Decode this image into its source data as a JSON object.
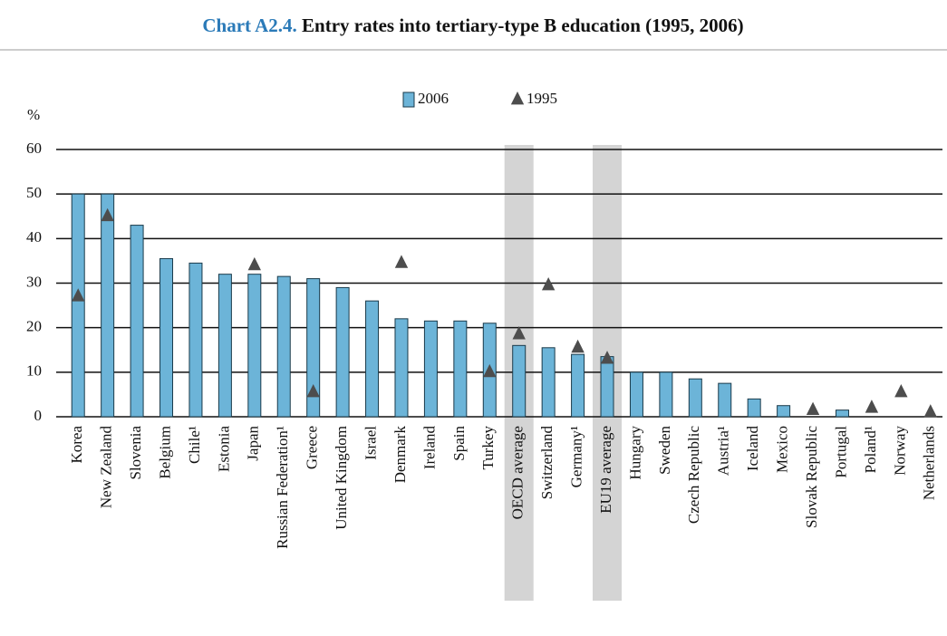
{
  "chart_data": {
    "type": "bar",
    "title": {
      "label": "Chart A2.4.",
      "text": "Entry rates into tertiary-type B education (1995, 2006)"
    },
    "y_unit": "%",
    "categories": [
      "Korea",
      "New  Zealand",
      "Slovenia",
      "Belgium",
      "Chile¹",
      "Estonia",
      "Japan",
      "Russian Federation¹",
      "Greece",
      "United Kingdom",
      "Israel",
      "Denmark",
      "Ireland",
      "Spain",
      "Turkey",
      "OECD average",
      "Switzerland",
      "Germany¹",
      "EU19 average",
      "Hungary",
      "Sweden",
      "Czech Republic",
      "Austria¹",
      "Iceland",
      "Mexico",
      "Slovak Republic",
      "Portugal",
      "Poland¹",
      "Norway",
      "Netherlands"
    ],
    "series": [
      {
        "name": "2006",
        "kind": "bar",
        "color": "#6cb4d8",
        "values": [
          50,
          50,
          43,
          35.5,
          34.5,
          32,
          32,
          31.5,
          31,
          29,
          26,
          22,
          21.5,
          21.5,
          21,
          16,
          15.5,
          14,
          13.5,
          10,
          10,
          8.5,
          7.5,
          4,
          2.5,
          null,
          1.5,
          null,
          null,
          null
        ]
      },
      {
        "name": "1995",
        "kind": "triangle",
        "color": "#4d4d4d",
        "values": [
          27,
          45,
          null,
          null,
          null,
          null,
          34,
          null,
          5.5,
          null,
          null,
          34.5,
          null,
          null,
          10,
          18.5,
          29.5,
          15.5,
          13,
          null,
          null,
          null,
          null,
          null,
          null,
          1.5,
          null,
          2,
          5.5,
          1
        ]
      }
    ],
    "highlight": [
      15,
      18
    ],
    "ylim": [
      0,
      60
    ],
    "yticks": [
      0,
      10,
      20,
      30,
      40,
      50,
      60
    ],
    "grid": true
  }
}
